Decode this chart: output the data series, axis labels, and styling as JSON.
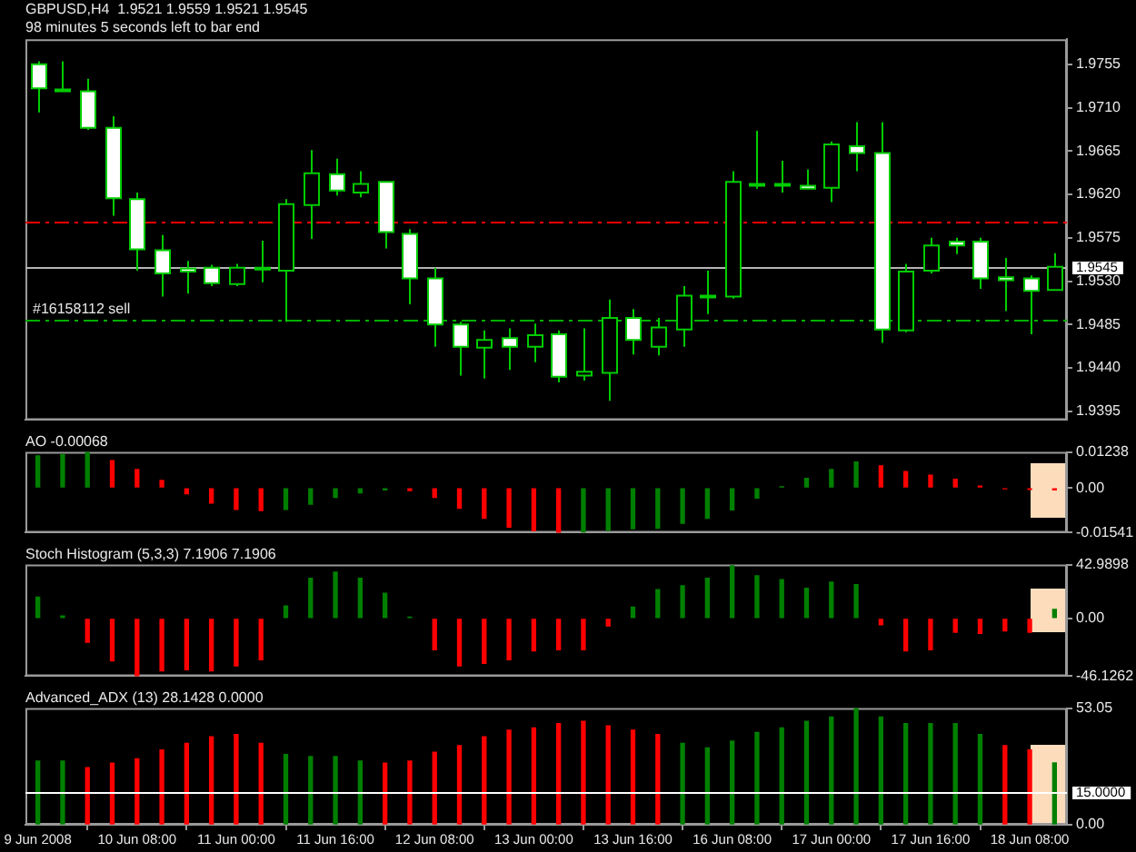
{
  "chart_data": [
    {
      "type": "candlestick",
      "title": "GBPUSD,H4  1.9521 1.9559 1.9521 1.9545",
      "subtitle": "98 minutes 5 seconds left to bar end",
      "categories": [
        null,
        null,
        null,
        null,
        null,
        null,
        null,
        null,
        null,
        null,
        null,
        null,
        null,
        null,
        null,
        null,
        null,
        null,
        null,
        null,
        null,
        null,
        null,
        null,
        null,
        null,
        null,
        null,
        null,
        null,
        null,
        null,
        null,
        null,
        null,
        null,
        null,
        null,
        null,
        null,
        null,
        null
      ],
      "ohlc": [
        [
          1.9755,
          1.9758,
          1.9705,
          1.973
        ],
        [
          1.9728,
          1.9758,
          1.9727,
          1.9729
        ],
        [
          1.9727,
          1.974,
          1.9687,
          1.9689
        ],
        [
          1.9689,
          1.9701,
          1.9598,
          1.9616
        ],
        [
          1.9615,
          1.9622,
          1.9541,
          1.9563
        ],
        [
          1.9562,
          1.9578,
          1.9514,
          1.9538
        ],
        [
          1.9543,
          1.9551,
          1.9517,
          1.954
        ],
        [
          1.9544,
          1.9547,
          1.9525,
          1.9528
        ],
        [
          1.9527,
          1.9548,
          1.9525,
          1.9544
        ],
        [
          1.9543,
          1.9572,
          1.9529,
          1.9544
        ],
        [
          1.9541,
          1.9615,
          1.9488,
          1.961
        ],
        [
          1.9609,
          1.9666,
          1.9574,
          1.9642
        ],
        [
          1.9641,
          1.9657,
          1.9619,
          1.9624
        ],
        [
          1.9622,
          1.9644,
          1.9617,
          1.9631
        ],
        [
          1.9633,
          1.9634,
          1.9564,
          1.9581
        ],
        [
          1.9579,
          1.9584,
          1.9506,
          1.9533
        ],
        [
          1.9533,
          1.9544,
          1.9462,
          1.9485
        ],
        [
          1.9485,
          1.9488,
          1.9432,
          1.9462
        ],
        [
          1.9461,
          1.9479,
          1.9429,
          1.9469
        ],
        [
          1.9471,
          1.9481,
          1.9438,
          1.9462
        ],
        [
          1.9462,
          1.9486,
          1.9446,
          1.9474
        ],
        [
          1.9475,
          1.9479,
          1.9425,
          1.9431
        ],
        [
          1.9432,
          1.9481,
          1.9427,
          1.9436
        ],
        [
          1.9435,
          1.9511,
          1.9406,
          1.9492
        ],
        [
          1.9492,
          1.9501,
          1.9454,
          1.9469
        ],
        [
          1.9462,
          1.9492,
          1.9453,
          1.9482
        ],
        [
          1.948,
          1.9525,
          1.9462,
          1.9515
        ],
        [
          1.9513,
          1.9541,
          1.9496,
          1.9515
        ],
        [
          1.9514,
          1.9644,
          1.9512,
          1.9633
        ],
        [
          1.963,
          1.9686,
          1.9626,
          1.9631
        ],
        [
          1.9631,
          1.9655,
          1.9622,
          1.963
        ],
        [
          1.9629,
          1.9646,
          1.9625,
          1.9626
        ],
        [
          1.9627,
          1.9675,
          1.9612,
          1.9672
        ],
        [
          1.967,
          1.9695,
          1.9644,
          1.9663
        ],
        [
          1.9663,
          1.9695,
          1.9466,
          1.948
        ],
        [
          1.9479,
          1.9548,
          1.9477,
          1.954
        ],
        [
          1.9541,
          1.9575,
          1.9538,
          1.9567
        ],
        [
          1.9571,
          1.9575,
          1.9558,
          1.9567
        ],
        [
          1.9571,
          1.9575,
          1.9522,
          1.9533
        ],
        [
          1.9534,
          1.9554,
          1.9499,
          1.9531
        ],
        [
          1.9533,
          1.9536,
          1.9475,
          1.952
        ],
        [
          1.9521,
          1.9559,
          1.9521,
          1.9545
        ]
      ],
      "color": "#00cc00",
      "colors": [
        "#ffffff",
        "#000000",
        "#ffffff",
        "#ffffff",
        "#ffffff",
        "#ffffff",
        "#ffffff",
        "#ffffff",
        "#000000",
        "#000000",
        "#000000",
        "#000000",
        "#ffffff",
        "#000000",
        "#ffffff",
        "#ffffff",
        "#ffffff",
        "#ffffff",
        "#000000",
        "#ffffff",
        "#000000",
        "#ffffff",
        "#000000",
        "#000000",
        "#ffffff",
        "#000000",
        "#000000",
        "#000000",
        "#000000",
        "#000000",
        "#ffffff",
        "#ffffff",
        "#000000",
        "#ffffff",
        "#ffffff",
        "#000000",
        "#000000",
        "#ffffff",
        "#ffffff",
        "#ffffff",
        "#ffffff",
        "#000000"
      ],
      "ylim": [
        1.9386,
        1.9781
      ],
      "yticks": [
        1.9755,
        {
          "value": 1.971,
          "label": "1.9710"
        },
        1.9665,
        {
          "value": 1.962,
          "label": "1.9620"
        },
        1.9575,
        {
          "value": 1.953,
          "label": "1.9530"
        },
        1.9485,
        {
          "value": 1.944,
          "label": "1.9440"
        },
        1.9395
      ],
      "ref_lines": [
        {
          "axis": "y",
          "value": 1.9591,
          "color": "#ff0000",
          "line_style": "dashed"
        },
        {
          "axis": "y",
          "value": 1.949,
          "label": "#16158112 sell",
          "color": "#00b000",
          "line_style": "dashed"
        },
        {
          "axis": "y",
          "value": 1.9545,
          "label": "1.9545",
          "color": "#b4b4b4",
          "line_style": "solid"
        }
      ],
      "tick_labels": "y"
    },
    {
      "type": "bar",
      "title": "AO -0.00068",
      "categories": [
        null,
        null,
        null,
        null,
        null,
        null,
        null,
        null,
        null,
        null,
        null,
        null,
        null,
        null,
        null,
        null,
        null,
        null,
        null,
        null,
        null,
        null,
        null,
        null,
        null,
        null,
        null,
        null,
        null,
        null,
        null,
        null,
        null,
        null,
        null,
        null,
        null,
        null,
        null,
        null,
        null,
        null
      ],
      "values": [
        0.011,
        0.0115,
        0.0123,
        0.0094,
        0.0063,
        0.0026,
        -0.002,
        -0.0052,
        -0.0074,
        -0.0078,
        -0.0074,
        -0.0056,
        -0.0033,
        -0.0017,
        -0.0007,
        -0.0009,
        -0.0033,
        -0.007,
        -0.0105,
        -0.0135,
        -0.0148,
        -0.0154,
        -0.0152,
        -0.0146,
        -0.0141,
        -0.0139,
        -0.0122,
        -0.0105,
        -0.0076,
        -0.0035,
        0.0004,
        0.0033,
        0.0063,
        0.0089,
        0.0076,
        0.0056,
        0.0044,
        0.003,
        0.0006,
        -0.0003,
        -0.0005,
        -0.00068
      ],
      "colors": [
        "#008000",
        "#008000",
        "#008000",
        "#ff0000",
        "#ff0000",
        "#ff0000",
        "#ff0000",
        "#ff0000",
        "#ff0000",
        "#ff0000",
        "#008000",
        "#008000",
        "#008000",
        "#008000",
        "#008000",
        "#ff0000",
        "#ff0000",
        "#ff0000",
        "#ff0000",
        "#ff0000",
        "#ff0000",
        "#ff0000",
        "#008000",
        "#008000",
        "#008000",
        "#008000",
        "#008000",
        "#008000",
        "#008000",
        "#008000",
        "#008000",
        "#008000",
        "#008000",
        "#008000",
        "#ff0000",
        "#ff0000",
        "#ff0000",
        "#ff0000",
        "#ff0000",
        "#ff0000",
        "#ff0000",
        "#ff0000"
      ],
      "ylim": [
        -0.01541,
        0.01238
      ],
      "yticks": [
        0.01238,
        {
          "value": 0,
          "label": "0.00"
        },
        -0.01541
      ],
      "tick_labels": "y"
    },
    {
      "type": "bar",
      "title": "Stoch Histogram (5,3,3) 7.1906 7.1906",
      "categories": [
        null,
        null,
        null,
        null,
        null,
        null,
        null,
        null,
        null,
        null,
        null,
        null,
        null,
        null,
        null,
        null,
        null,
        null,
        null,
        null,
        null,
        null,
        null,
        null,
        null,
        null,
        null,
        null,
        null,
        null,
        null,
        null,
        null,
        null,
        null,
        null,
        null,
        null,
        null,
        null,
        null,
        null
      ],
      "values": [
        17,
        2,
        -19,
        -34,
        -46,
        -42,
        -41,
        -42,
        -38,
        -33,
        10,
        32,
        37,
        32,
        20,
        1,
        -25,
        -38,
        -36,
        -33,
        -26,
        -25,
        -25,
        -6,
        9,
        23,
        26,
        32,
        42,
        34,
        31,
        24,
        29,
        27,
        -5,
        -26,
        -25,
        -11,
        -12,
        -10,
        -11,
        7.1906
      ],
      "colors": [
        "#008000",
        "#008000",
        "#ff0000",
        "#ff0000",
        "#ff0000",
        "#ff0000",
        "#ff0000",
        "#ff0000",
        "#ff0000",
        "#ff0000",
        "#008000",
        "#008000",
        "#008000",
        "#008000",
        "#008000",
        "#008000",
        "#ff0000",
        "#ff0000",
        "#ff0000",
        "#ff0000",
        "#ff0000",
        "#ff0000",
        "#ff0000",
        "#ff0000",
        "#008000",
        "#008000",
        "#008000",
        "#008000",
        "#008000",
        "#008000",
        "#008000",
        "#008000",
        "#008000",
        "#008000",
        "#ff0000",
        "#ff0000",
        "#ff0000",
        "#ff0000",
        "#ff0000",
        "#ff0000",
        "#ff0000",
        "#008000"
      ],
      "ylim": [
        -46.1262,
        42.9898
      ],
      "yticks": [
        42.9898,
        {
          "value": 0,
          "label": "0.00"
        },
        -46.1262
      ],
      "tick_labels": "y"
    },
    {
      "type": "bar",
      "title": "Advanced_ADX (13) 28.1428 0.0000",
      "categories": [
        "9 Jun 2008",
        null,
        null,
        null,
        "10 Jun 08:00",
        null,
        null,
        null,
        "11 Jun 00:00",
        null,
        null,
        null,
        "11 Jun 16:00",
        null,
        null,
        null,
        "12 Jun 08:00",
        null,
        null,
        null,
        "13 Jun 00:00",
        null,
        null,
        null,
        "13 Jun 16:00",
        null,
        null,
        null,
        "16 Jun 08:00",
        null,
        null,
        null,
        "17 Jun 00:00",
        null,
        null,
        null,
        "17 Jun 16:00",
        null,
        null,
        null,
        "18 Jun 08:00",
        null
      ],
      "values": [
        29,
        29,
        26,
        28,
        30,
        34,
        37,
        40,
        41,
        37,
        32,
        31,
        31,
        29,
        28,
        29,
        33,
        36,
        40,
        43,
        44,
        46,
        47,
        45,
        43,
        41,
        37,
        35,
        38,
        42,
        44,
        47,
        49,
        53,
        49,
        46,
        46,
        46,
        41,
        36,
        34,
        28.1428
      ],
      "colors": [
        "#008000",
        "#008000",
        "#ff0000",
        "#ff0000",
        "#ff0000",
        "#ff0000",
        "#ff0000",
        "#ff0000",
        "#ff0000",
        "#ff0000",
        "#008000",
        "#008000",
        "#008000",
        "#008000",
        "#ff0000",
        "#ff0000",
        "#ff0000",
        "#ff0000",
        "#ff0000",
        "#ff0000",
        "#ff0000",
        "#ff0000",
        "#ff0000",
        "#ff0000",
        "#ff0000",
        "#ff0000",
        "#008000",
        "#008000",
        "#008000",
        "#008000",
        "#008000",
        "#008000",
        "#008000",
        "#008000",
        "#008000",
        "#008000",
        "#008000",
        "#008000",
        "#008000",
        "#ff0000",
        "#ff0000",
        "#008000"
      ],
      "ylim": [
        0,
        53.05
      ],
      "yticks": [
        53.05,
        {
          "value": 0,
          "label": "0.00"
        }
      ],
      "ref_lines": [
        {
          "axis": "y",
          "value": 15,
          "label": "15.0000",
          "color": "#ffffff",
          "line_style": "solid"
        }
      ]
    }
  ]
}
